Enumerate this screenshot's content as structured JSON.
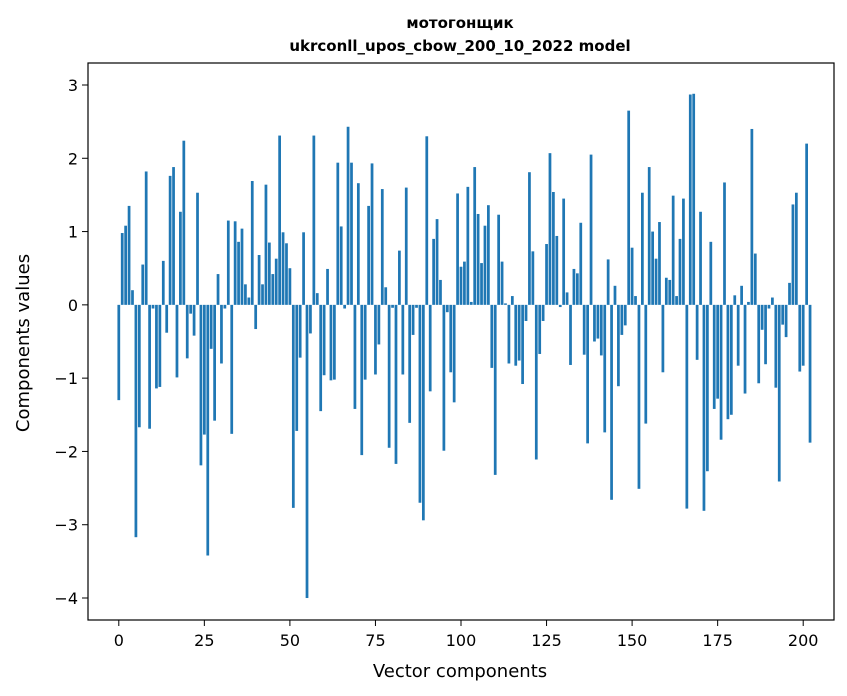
{
  "chart_data": {
    "type": "bar",
    "title_line1": "мотогонщик",
    "title_line2": "ukrconll_upos_cbow_200_10_2022 model",
    "xlabel": "Vector components",
    "ylabel": "Components values",
    "xlim": [
      -9,
      209
    ],
    "ylim": [
      -4.3,
      3.3
    ],
    "x_ticks": [
      0,
      25,
      50,
      75,
      100,
      125,
      150,
      175,
      200
    ],
    "y_ticks": [
      3,
      2,
      1,
      0,
      -1,
      -2,
      -3,
      -4
    ],
    "y_tick_labels": [
      "3",
      "2",
      "1",
      "0",
      "−1",
      "−2",
      "−3",
      "−4"
    ],
    "bar_color": "#1f77b4",
    "grid": false,
    "values": [
      -1.3,
      0.98,
      1.08,
      1.35,
      0.2,
      -3.17,
      -1.67,
      0.55,
      1.82,
      -1.69,
      -0.05,
      -1.14,
      -1.12,
      0.6,
      -0.38,
      1.76,
      1.88,
      -0.99,
      1.27,
      2.24,
      -0.73,
      -0.12,
      -0.42,
      1.53,
      -2.19,
      -1.77,
      -3.42,
      -0.6,
      -1.58,
      0.42,
      -0.8,
      -0.05,
      1.15,
      -1.76,
      1.14,
      0.86,
      1.04,
      0.28,
      0.1,
      1.69,
      -0.33,
      0.68,
      0.28,
      1.64,
      0.85,
      0.42,
      0.63,
      2.31,
      0.99,
      0.84,
      0.5,
      -2.77,
      -1.72,
      -0.72,
      0.99,
      -4.0,
      -0.39,
      2.31,
      0.16,
      -1.45,
      -0.96,
      0.49,
      -1.03,
      -1.02,
      1.94,
      1.07,
      -0.05,
      2.43,
      1.94,
      -1.42,
      1.66,
      -2.05,
      -1.02,
      1.35,
      1.93,
      -0.95,
      -0.54,
      1.58,
      0.24,
      -1.95,
      -0.04,
      -2.17,
      0.74,
      -0.95,
      1.6,
      -1.61,
      -0.41,
      -0.04,
      -2.7,
      -2.94,
      2.3,
      -1.18,
      0.9,
      1.17,
      0.34,
      -1.99,
      -0.1,
      -0.92,
      -1.33,
      1.52,
      0.52,
      0.59,
      1.61,
      0.04,
      1.88,
      1.24,
      0.57,
      1.08,
      1.36,
      -0.86,
      -2.32,
      1.23,
      0.59,
      0.02,
      -0.8,
      0.12,
      -0.83,
      -0.76,
      -1.08,
      -0.22,
      1.81,
      0.73,
      -2.11,
      -0.67,
      -0.22,
      0.83,
      2.07,
      1.54,
      0.94,
      -0.03,
      1.45,
      0.17,
      -0.82,
      0.49,
      0.43,
      1.12,
      -0.68,
      -1.89,
      2.05,
      -0.5,
      -0.46,
      -0.69,
      -1.74,
      0.62,
      -2.66,
      0.26,
      -1.11,
      -0.41,
      -0.28,
      2.65,
      0.78,
      0.12,
      -2.51,
      1.53,
      -1.62,
      1.88,
      1.0,
      0.63,
      1.13,
      -0.92,
      0.37,
      0.34,
      1.49,
      0.12,
      0.9,
      1.45,
      -2.78,
      2.87,
      2.88,
      -0.75,
      1.27,
      -2.81,
      -2.27,
      0.86,
      -1.42,
      -1.28,
      -1.84,
      1.67,
      -1.56,
      -1.5,
      0.13,
      -0.83,
      0.26,
      -1.21,
      0.04,
      2.4,
      0.7,
      -1.07,
      -0.34,
      -0.81,
      -0.05,
      0.1,
      -1.13,
      -2.41,
      -0.27,
      -0.44,
      0.3,
      1.37,
      1.53,
      -0.91,
      -0.83,
      2.2,
      -1.88
    ]
  }
}
